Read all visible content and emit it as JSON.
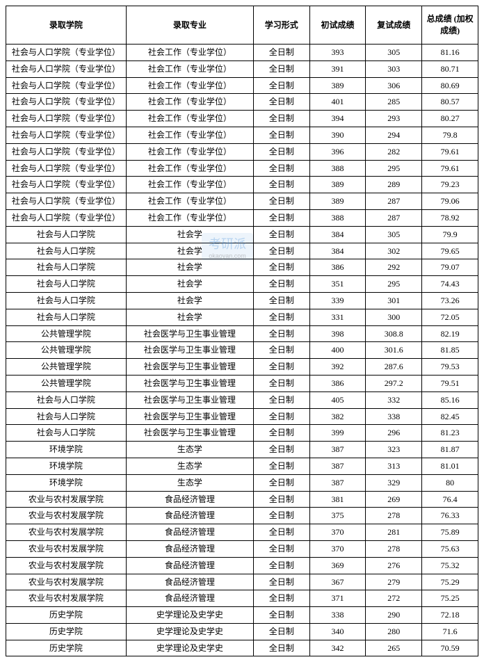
{
  "table": {
    "columns": [
      {
        "key": "college",
        "label": "录取学院",
        "class": "col-college"
      },
      {
        "key": "major",
        "label": "录取专业",
        "class": "col-major"
      },
      {
        "key": "mode",
        "label": "学习形式",
        "class": "col-mode"
      },
      {
        "key": "prelim",
        "label": "初试成绩",
        "class": "col-score1"
      },
      {
        "key": "retest",
        "label": "复试成绩",
        "class": "col-score2"
      },
      {
        "key": "total",
        "label": "总成绩 (加权成绩)",
        "class": "col-total"
      }
    ],
    "rows": [
      [
        "社会与人口学院（专业学位）",
        "社会工作（专业学位）",
        "全日制",
        "393",
        "305",
        "81.16"
      ],
      [
        "社会与人口学院（专业学位）",
        "社会工作（专业学位）",
        "全日制",
        "391",
        "303",
        "80.71"
      ],
      [
        "社会与人口学院（专业学位）",
        "社会工作（专业学位）",
        "全日制",
        "389",
        "306",
        "80.69"
      ],
      [
        "社会与人口学院（专业学位）",
        "社会工作（专业学位）",
        "全日制",
        "401",
        "285",
        "80.57"
      ],
      [
        "社会与人口学院（专业学位）",
        "社会工作（专业学位）",
        "全日制",
        "394",
        "293",
        "80.27"
      ],
      [
        "社会与人口学院（专业学位）",
        "社会工作（专业学位）",
        "全日制",
        "390",
        "294",
        "79.8"
      ],
      [
        "社会与人口学院（专业学位）",
        "社会工作（专业学位）",
        "全日制",
        "396",
        "282",
        "79.61"
      ],
      [
        "社会与人口学院（专业学位）",
        "社会工作（专业学位）",
        "全日制",
        "388",
        "295",
        "79.61"
      ],
      [
        "社会与人口学院（专业学位）",
        "社会工作（专业学位）",
        "全日制",
        "389",
        "289",
        "79.23"
      ],
      [
        "社会与人口学院（专业学位）",
        "社会工作（专业学位）",
        "全日制",
        "389",
        "287",
        "79.06"
      ],
      [
        "社会与人口学院（专业学位）",
        "社会工作（专业学位）",
        "全日制",
        "388",
        "287",
        "78.92"
      ],
      [
        "社会与人口学院",
        "社会学",
        "全日制",
        "384",
        "305",
        "79.9"
      ],
      [
        "社会与人口学院",
        "社会学",
        "全日制",
        "384",
        "302",
        "79.65"
      ],
      [
        "社会与人口学院",
        "社会学",
        "全日制",
        "386",
        "292",
        "79.07"
      ],
      [
        "社会与人口学院",
        "社会学",
        "全日制",
        "351",
        "295",
        "74.43"
      ],
      [
        "社会与人口学院",
        "社会学",
        "全日制",
        "339",
        "301",
        "73.26"
      ],
      [
        "社会与人口学院",
        "社会学",
        "全日制",
        "331",
        "300",
        "72.05"
      ],
      [
        "公共管理学院",
        "社会医学与卫生事业管理",
        "全日制",
        "398",
        "308.8",
        "82.19"
      ],
      [
        "公共管理学院",
        "社会医学与卫生事业管理",
        "全日制",
        "400",
        "301.6",
        "81.85"
      ],
      [
        "公共管理学院",
        "社会医学与卫生事业管理",
        "全日制",
        "392",
        "287.6",
        "79.53"
      ],
      [
        "公共管理学院",
        "社会医学与卫生事业管理",
        "全日制",
        "386",
        "297.2",
        "79.51"
      ],
      [
        "社会与人口学院",
        "社会医学与卫生事业管理",
        "全日制",
        "405",
        "332",
        "85.16"
      ],
      [
        "社会与人口学院",
        "社会医学与卫生事业管理",
        "全日制",
        "382",
        "338",
        "82.45"
      ],
      [
        "社会与人口学院",
        "社会医学与卫生事业管理",
        "全日制",
        "399",
        "296",
        "81.23"
      ],
      [
        "环境学院",
        "生态学",
        "全日制",
        "387",
        "323",
        "81.87"
      ],
      [
        "环境学院",
        "生态学",
        "全日制",
        "387",
        "313",
        "81.01"
      ],
      [
        "环境学院",
        "生态学",
        "全日制",
        "387",
        "329",
        "80"
      ],
      [
        "农业与农村发展学院",
        "食品经济管理",
        "全日制",
        "381",
        "269",
        "76.4"
      ],
      [
        "农业与农村发展学院",
        "食品经济管理",
        "全日制",
        "375",
        "278",
        "76.33"
      ],
      [
        "农业与农村发展学院",
        "食品经济管理",
        "全日制",
        "370",
        "281",
        "75.89"
      ],
      [
        "农业与农村发展学院",
        "食品经济管理",
        "全日制",
        "370",
        "278",
        "75.63"
      ],
      [
        "农业与农村发展学院",
        "食品经济管理",
        "全日制",
        "369",
        "276",
        "75.32"
      ],
      [
        "农业与农村发展学院",
        "食品经济管理",
        "全日制",
        "367",
        "279",
        "75.29"
      ],
      [
        "农业与农村发展学院",
        "食品经济管理",
        "全日制",
        "371",
        "272",
        "75.25"
      ],
      [
        "历史学院",
        "史学理论及史学史",
        "全日制",
        "338",
        "290",
        "72.18"
      ],
      [
        "历史学院",
        "史学理论及史学史",
        "全日制",
        "340",
        "280",
        "71.6"
      ],
      [
        "历史学院",
        "史学理论及史学史",
        "全日制",
        "342",
        "265",
        "70.59"
      ]
    ],
    "border_color": "#000000",
    "background_color": "#ffffff",
    "header_font_weight": "bold",
    "cell_font_size": 12
  },
  "watermark": {
    "text": "考研派",
    "sub": "okaoyan.com",
    "color": "rgba(80,150,220,0.35)"
  }
}
